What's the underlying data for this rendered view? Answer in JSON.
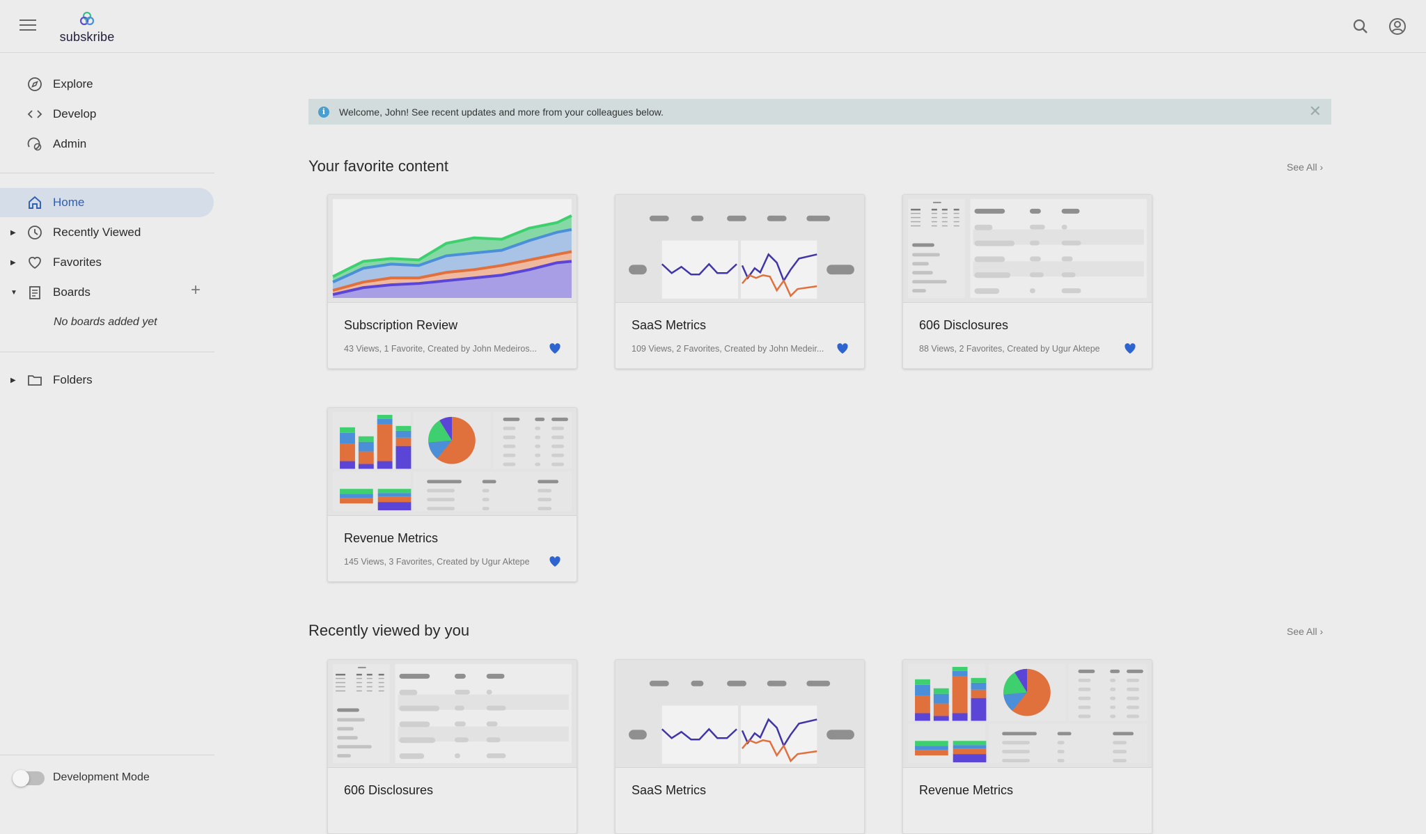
{
  "header": {
    "brand": "subskribe",
    "icons": [
      "menu-icon",
      "search-icon",
      "account-icon"
    ]
  },
  "sidebar": {
    "top_items": [
      {
        "label": "Explore",
        "icon": "compass-icon"
      },
      {
        "label": "Develop",
        "icon": "code-icon"
      },
      {
        "label": "Admin",
        "icon": "admin-icon"
      }
    ],
    "home": {
      "label": "Home"
    },
    "recent": {
      "label": "Recently Viewed"
    },
    "favorites": {
      "label": "Favorites"
    },
    "boards": {
      "label": "Boards",
      "empty": "No boards added yet"
    },
    "folders": {
      "label": "Folders"
    },
    "dev_mode": {
      "label": "Development Mode",
      "enabled": false
    }
  },
  "banner": {
    "message": "Welcome, John! See recent updates and more from your colleagues below."
  },
  "colors": {
    "accent": "#2f5fb3",
    "heart": "#2d64d0",
    "banner_bg": "#d3dcdd"
  },
  "sections": [
    {
      "title": "Your favorite content",
      "see_all": "See All ›",
      "cards": [
        {
          "title": "Subscription Review",
          "meta": "43 Views, 1 Favorite, Created by John Medeiros...",
          "thumb": "area",
          "favorited": true
        },
        {
          "title": "SaaS Metrics",
          "meta": "109 Views, 2 Favorites, Created by John Medeir...",
          "thumb": "saas",
          "favorited": true
        },
        {
          "title": "606 Disclosures",
          "meta": "88 Views, 2 Favorites, Created by Ugur Aktepe",
          "thumb": "table",
          "favorited": true
        },
        {
          "title": "Revenue Metrics",
          "meta": "145 Views, 3 Favorites, Created by Ugur Aktepe",
          "thumb": "revenue",
          "favorited": true
        }
      ]
    },
    {
      "title": "Recently viewed by you",
      "see_all": "See All ›",
      "cards": [
        {
          "title": "606 Disclosures",
          "thumb": "table"
        },
        {
          "title": "SaaS Metrics",
          "thumb": "saas"
        },
        {
          "title": "Revenue Metrics",
          "thumb": "revenue"
        }
      ]
    }
  ]
}
